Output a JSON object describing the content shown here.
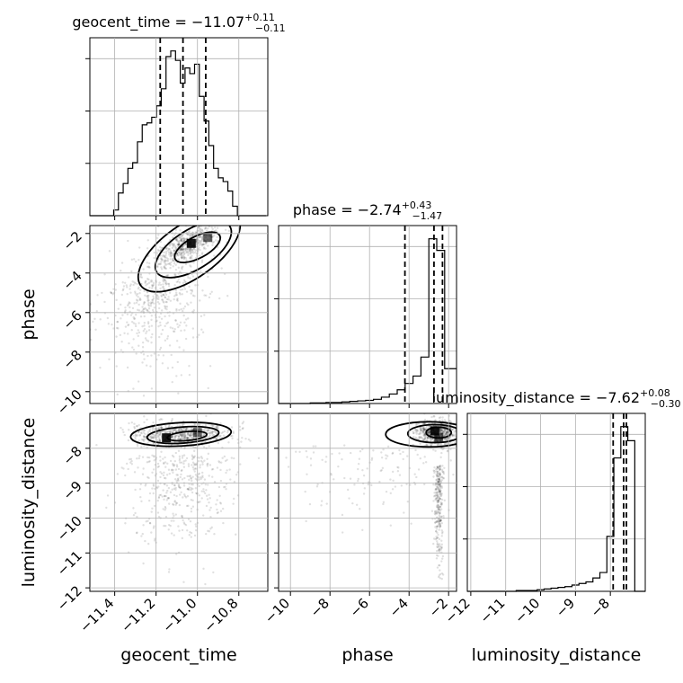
{
  "chart_data": {
    "type": "corner",
    "parameters": [
      {
        "name": "geocent_time",
        "axis_label": "geocent_time",
        "title_prefix": "geocent_time = ",
        "median": "−11.07",
        "plus": "+0.11",
        "minus": "−0.11",
        "range": [
          -11.52,
          -10.66
        ],
        "ticks": [
          -11.4,
          -11.2,
          -11.0,
          -10.8
        ],
        "tick_labels": [
          "−11.4",
          "−11.2",
          "−11.0",
          "−10.8"
        ],
        "quantiles": [
          -11.18,
          -11.07,
          -10.96
        ],
        "hist_edges": [
          -11.52,
          -11.497,
          -11.474,
          -11.451,
          -11.428,
          -11.405,
          -11.382,
          -11.359,
          -11.336,
          -11.313,
          -11.29,
          -11.267,
          -11.244,
          -11.221,
          -11.198,
          -11.175,
          -11.152,
          -11.129,
          -11.106,
          -11.083,
          -11.06,
          -11.037,
          -11.014,
          -10.991,
          -10.968,
          -10.945,
          -10.922,
          -10.899,
          -10.876,
          -10.853,
          -10.83,
          -10.807,
          -10.784,
          -10.761,
          -10.738,
          -10.715,
          -10.692,
          -10.669
        ],
        "hist_counts": [
          0,
          0,
          0,
          0,
          0,
          3,
          12,
          17,
          25,
          28,
          39,
          48,
          49,
          52,
          58,
          67,
          84,
          87,
          82,
          70,
          78,
          75,
          80,
          63,
          50,
          37,
          25,
          20,
          18,
          13,
          5,
          0,
          0,
          0,
          0,
          0,
          0
        ]
      },
      {
        "name": "phase",
        "axis_label": "phase",
        "title_prefix": "phase = ",
        "median": "−2.74",
        "plus": "+0.43",
        "minus": "−1.47",
        "range": [
          -10.6,
          -1.6
        ],
        "ticks": [
          -10,
          -8,
          -6,
          -4,
          -2
        ],
        "tick_labels": [
          "−10",
          "−8",
          "−6",
          "−4",
          "−2"
        ],
        "quantiles": [
          -4.21,
          -2.74,
          -2.31
        ],
        "hist_edges": [
          -10.6,
          -10.2,
          -9.8,
          -9.4,
          -9.0,
          -8.6,
          -8.2,
          -7.8,
          -7.4,
          -7.0,
          -6.6,
          -6.2,
          -5.8,
          -5.4,
          -5.0,
          -4.6,
          -4.2,
          -3.8,
          -3.4,
          -3.0,
          -2.6,
          -2.2,
          -1.6
        ],
        "hist_counts": [
          0,
          0,
          0,
          0,
          1,
          1,
          2,
          2,
          3,
          4,
          5,
          6,
          8,
          12,
          18,
          26,
          38,
          52,
          88,
          312,
          290,
          66
        ]
      },
      {
        "name": "luminosity_distance",
        "axis_label": "luminosity_distance",
        "title_prefix": "luminosity_distance = ",
        "median": "−7.62",
        "plus": "+0.08",
        "minus": "−0.30",
        "range": [
          -12.1,
          -7.0
        ],
        "ticks": [
          -12,
          -11,
          -10,
          -9,
          -8
        ],
        "tick_labels": [
          "−12",
          "−11",
          "−10",
          "−9",
          "−8"
        ],
        "quantiles": [
          -7.92,
          -7.62,
          -7.54
        ],
        "hist_edges": [
          -12.1,
          -11.9,
          -11.7,
          -11.5,
          -11.3,
          -11.1,
          -10.9,
          -10.7,
          -10.5,
          -10.3,
          -10.1,
          -9.9,
          -9.7,
          -9.5,
          -9.3,
          -9.1,
          -8.9,
          -8.7,
          -8.5,
          -8.3,
          -8.1,
          -7.9,
          -7.7,
          -7.5,
          -7.3,
          -7.0
        ],
        "hist_counts": [
          0,
          0,
          0,
          0,
          0,
          0,
          0,
          1,
          1,
          1,
          2,
          3,
          4,
          5,
          6,
          8,
          10,
          12,
          17,
          24,
          70,
          170,
          210,
          192,
          0
        ]
      }
    ]
  }
}
